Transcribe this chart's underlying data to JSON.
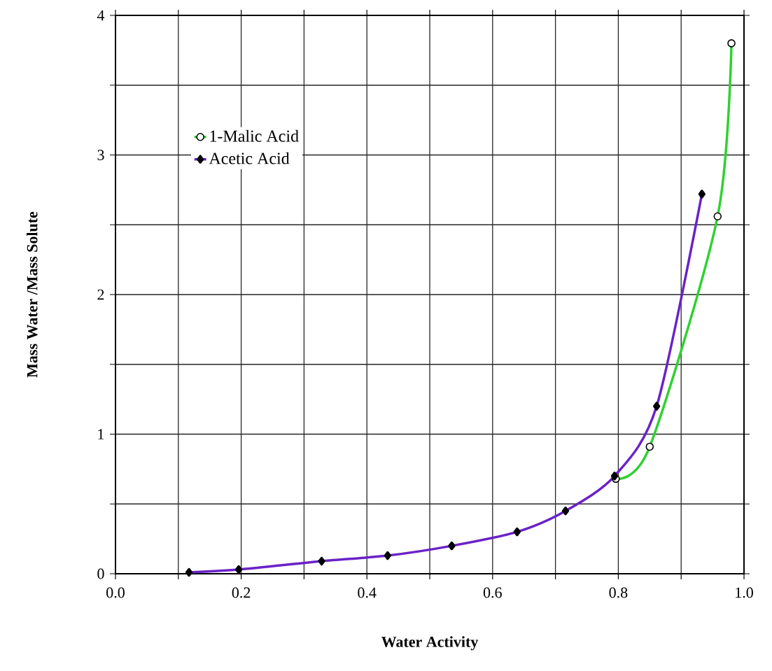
{
  "chart_data": {
    "type": "line",
    "xlabel": "Water Activity",
    "ylabel": "Mass Water /Mass Solute",
    "xlim": [
      0,
      1
    ],
    "ylim": [
      0,
      4
    ],
    "xticks": [
      {
        "value": 0,
        "label": "0.0"
      },
      {
        "value": 0.1,
        "label": null
      },
      {
        "value": 0.2,
        "label": "0.2"
      },
      {
        "value": 0.3,
        "label": null
      },
      {
        "value": 0.4,
        "label": "0.4"
      },
      {
        "value": 0.5,
        "label": null
      },
      {
        "value": 0.6,
        "label": "0.6"
      },
      {
        "value": 0.7,
        "label": null
      },
      {
        "value": 0.8,
        "label": "0.8"
      },
      {
        "value": 0.9,
        "label": null
      },
      {
        "value": 1,
        "label": "1.0"
      }
    ],
    "yticks": [
      0,
      {
        "value": 0.5,
        "label": null
      },
      1,
      {
        "value": 1.5,
        "label": null
      },
      2,
      {
        "value": 2.5,
        "label": null
      },
      3,
      {
        "value": 3.5,
        "label": null
      },
      4
    ],
    "grid": true,
    "legend": "top left",
    "series": [
      {
        "name": "1-Malic Acid",
        "color": "#2fd12f",
        "marker": "circle",
        "x": [
          0.796,
          0.85,
          0.958,
          0.98
        ],
        "values": [
          0.68,
          0.91,
          2.56,
          3.8
        ]
      },
      {
        "name": "Acetic Acid",
        "color": "#6a22c8",
        "marker": "diamond",
        "x": [
          0.117,
          0.196,
          0.328,
          0.433,
          0.535,
          0.639,
          0.716,
          0.794,
          0.861,
          0.933
        ],
        "values": [
          0.01,
          0.03,
          0.09,
          0.13,
          0.2,
          0.3,
          0.45,
          0.7,
          1.2,
          2.72
        ]
      }
    ]
  }
}
